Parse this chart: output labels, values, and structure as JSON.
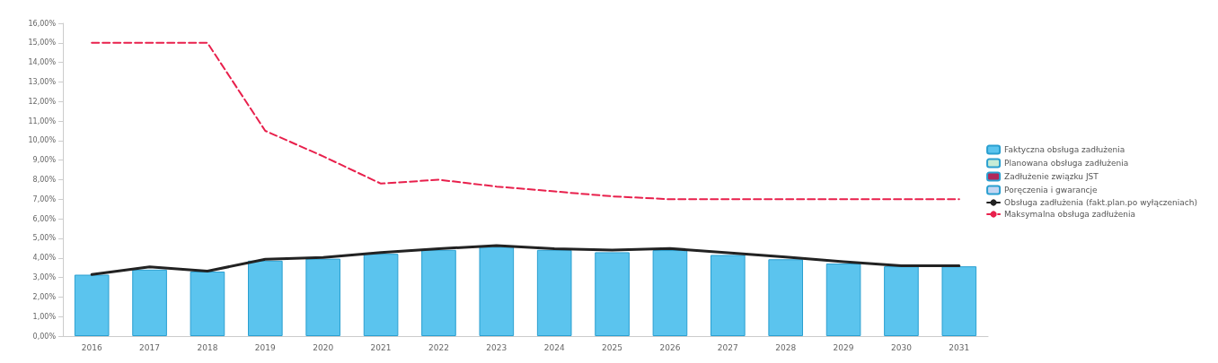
{
  "chart_data": {
    "type": "bar",
    "categories": [
      "2016",
      "2017",
      "2018",
      "2019",
      "2020",
      "2021",
      "2022",
      "2023",
      "2024",
      "2025",
      "2026",
      "2027",
      "2028",
      "2029",
      "2030",
      "2031"
    ],
    "series": [
      {
        "name": "Faktyczna obsługa zadłużenia",
        "color": "#5bc4ee",
        "values": [
          3.14,
          3.4,
          3.3,
          3.86,
          3.96,
          4.21,
          4.41,
          4.57,
          4.41,
          4.29,
          4.4,
          4.15,
          3.93,
          3.71,
          3.57,
          3.57
        ]
      },
      {
        "name": "Planowana obsługa zadłużenia",
        "color": "#c6ecd6",
        "values": [
          null,
          null,
          null,
          null,
          null,
          null,
          null,
          null,
          null,
          null,
          null,
          null,
          null,
          null,
          null,
          null
        ]
      },
      {
        "name": "Zadłużenie związku JST",
        "color": "#b0285a",
        "values": [
          null,
          null,
          null,
          null,
          null,
          null,
          null,
          null,
          null,
          null,
          null,
          null,
          null,
          null,
          null,
          null
        ]
      },
      {
        "name": "Poręczenia i gwarancje",
        "color": "#c4d6f2",
        "values": [
          null,
          null,
          null,
          null,
          null,
          null,
          null,
          null,
          null,
          null,
          null,
          null,
          null,
          null,
          null,
          null
        ]
      },
      {
        "name": "Obsługa zadłużenia (fakt.plan.po wyłączeniach)",
        "type": "line",
        "color": "#222222",
        "line_style": "solid",
        "values": [
          3.15,
          3.54,
          3.32,
          3.93,
          4.02,
          4.28,
          4.47,
          4.63,
          4.47,
          4.4,
          4.48,
          4.26,
          4.05,
          3.81,
          3.6,
          3.6
        ]
      },
      {
        "name": "Maksymalna obsługa zadłużenia",
        "type": "line",
        "color": "#e8204c",
        "line_style": "dashed",
        "values": [
          15.0,
          15.0,
          15.0,
          10.5,
          9.2,
          7.8,
          8.0,
          7.65,
          7.4,
          7.15,
          7.0,
          7.0,
          7.0,
          7.0,
          7.0,
          7.0
        ]
      }
    ],
    "ylim": [
      0,
      16
    ],
    "yticks": [
      {
        "value": 0,
        "label": "0,00%"
      },
      {
        "value": 1,
        "label": "1,00%"
      },
      {
        "value": 2,
        "label": "2,00%"
      },
      {
        "value": 3,
        "label": "3,00%"
      },
      {
        "value": 4,
        "label": "4,00%"
      },
      {
        "value": 5,
        "label": "5,00%"
      },
      {
        "value": 6,
        "label": "6,00%"
      },
      {
        "value": 7,
        "label": "7,00%"
      },
      {
        "value": 8,
        "label": "8,00%"
      },
      {
        "value": 9,
        "label": "9,00%"
      },
      {
        "value": 10,
        "label": "10,00%"
      },
      {
        "value": 11,
        "label": "11,00%"
      },
      {
        "value": 12,
        "label": "12,00%"
      },
      {
        "value": 13,
        "label": "13,00%"
      },
      {
        "value": 14,
        "label": "14,00%"
      },
      {
        "value": 15,
        "label": "15,00%"
      },
      {
        "value": 16,
        "label": "16,00%"
      }
    ],
    "grid": false,
    "legend": "right",
    "marker": "none"
  }
}
